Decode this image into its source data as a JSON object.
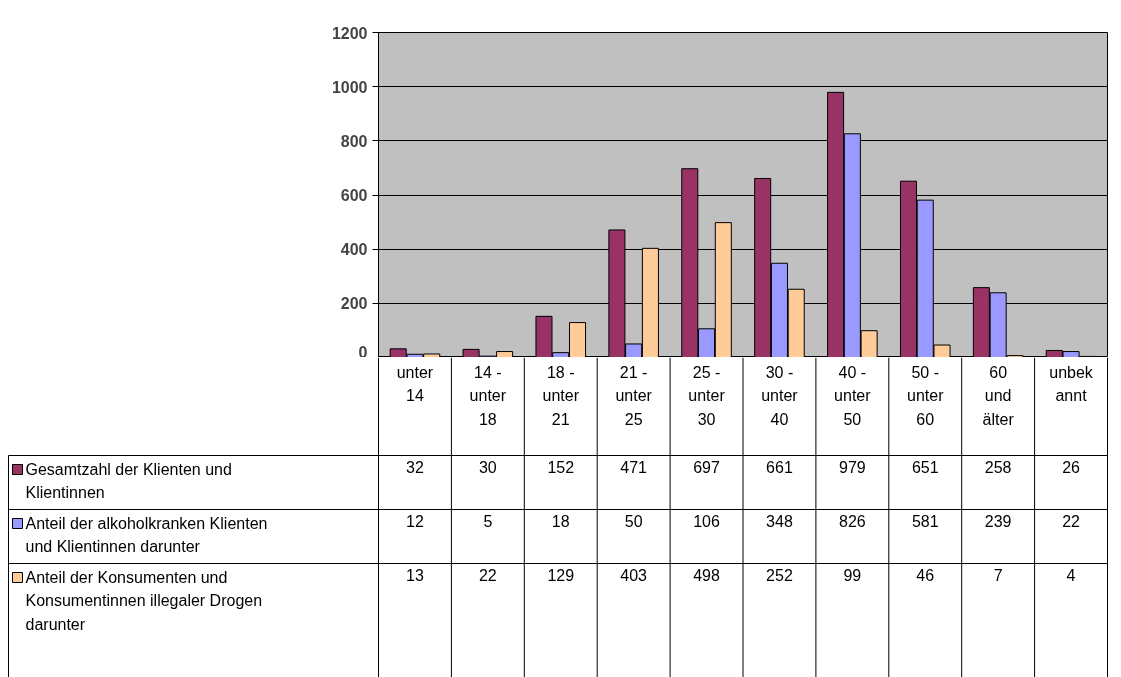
{
  "chart_data": {
    "type": "bar",
    "categories": [
      "unter 14",
      "14 - unter 18",
      "18 - unter 21",
      "21 - unter 25",
      "25 - unter 30",
      "30 - unter 40",
      "40 - unter 50",
      "50 - unter 60",
      "60 und älter",
      "unbekannt"
    ],
    "series": [
      {
        "name": "Gesamtzahl der Klienten und Klientinnen",
        "color": "#993366",
        "values": [
          32,
          30,
          152,
          471,
          697,
          661,
          979,
          651,
          258,
          26
        ]
      },
      {
        "name": "Anteil der alkoholkranken Klienten und Klientinnen darunter",
        "color": "#9999ff",
        "values": [
          12,
          5,
          18,
          50,
          106,
          348,
          826,
          581,
          239,
          22
        ]
      },
      {
        "name": "Anteil der Konsumenten und Konsumentinnen illegaler Drogen darunter",
        "color": "#ffcc99",
        "values": [
          13,
          22,
          129,
          403,
          498,
          252,
          99,
          46,
          7,
          4
        ]
      }
    ],
    "ylim": [
      0,
      1200
    ],
    "yticks": [
      0,
      200,
      400,
      600,
      800,
      1000,
      1200
    ],
    "grid": "y",
    "data_labels": true,
    "legend": "bottom"
  }
}
